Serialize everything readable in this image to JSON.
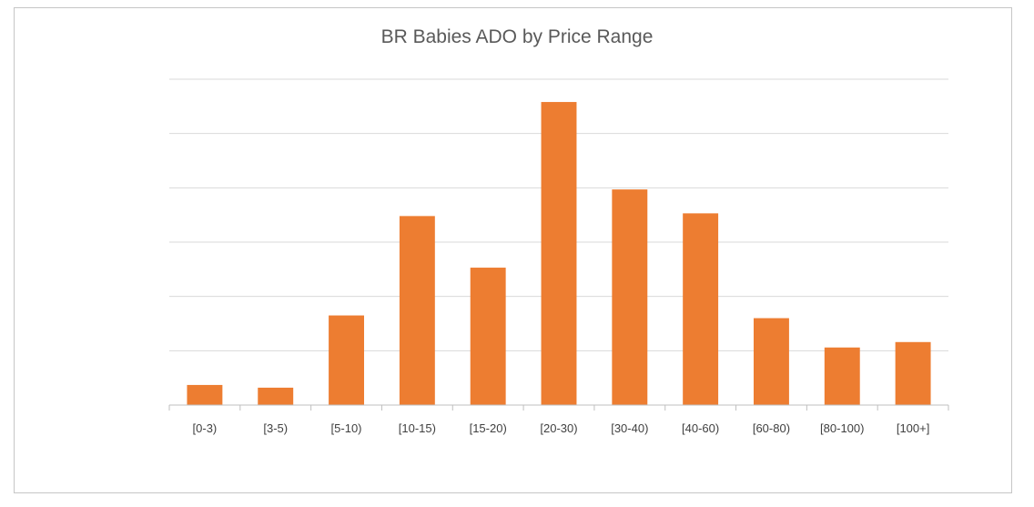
{
  "chart_data": {
    "type": "bar",
    "title": "BR Babies ADO by Price Range",
    "xlabel": "",
    "ylabel": "",
    "categories": [
      "[0-3)",
      "[3-5)",
      "[5-10)",
      "[10-15)",
      "[15-20)",
      "[20-30)",
      "[30-40)",
      "[40-60)",
      "[60-80)",
      "[80-100)",
      "[100+]"
    ],
    "values": [
      0.37,
      0.32,
      1.65,
      3.48,
      2.53,
      5.58,
      3.97,
      3.53,
      1.6,
      1.06,
      1.16
    ],
    "ylim": [
      0,
      6
    ],
    "gridlines": [
      1,
      2,
      3,
      4,
      5,
      6
    ],
    "grid": true,
    "show_y_tick_labels": false,
    "legend": "none",
    "bar_color": "#ED7D31",
    "grid_color": "#D9D9D9",
    "axis_color": "#BFBFBF"
  }
}
